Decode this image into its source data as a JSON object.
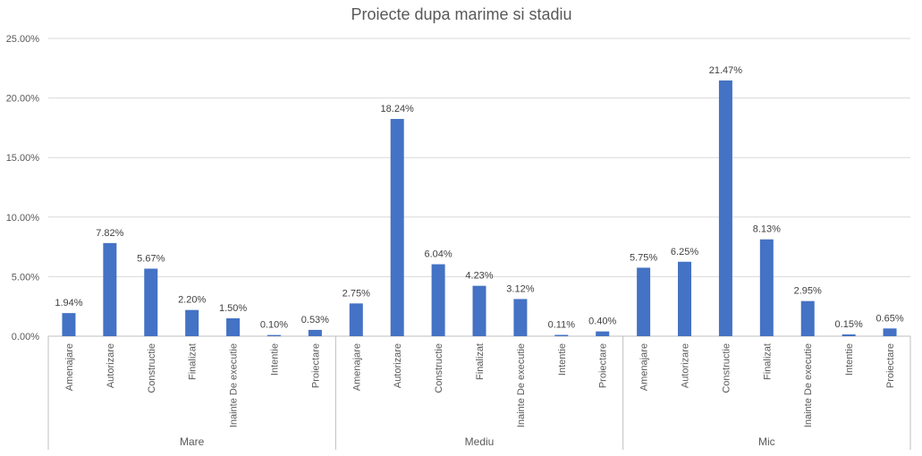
{
  "chart_data": {
    "type": "bar",
    "title": "Proiecte dupa marime si stadiu",
    "ylim": [
      0,
      25
    ],
    "y_unit": "%",
    "y_ticks": [
      "0.00%",
      "5.00%",
      "10.00%",
      "15.00%",
      "20.00%",
      "25.00%"
    ],
    "grid": true,
    "legend": "none",
    "color": "#4472c4",
    "groups": [
      {
        "name": "Mare",
        "categories": [
          "Amenajare",
          "Autorizare",
          "Constructie",
          "Finalizat",
          "Inainte De executie",
          "Intentie",
          "Proiectare"
        ],
        "values": [
          1.94,
          7.82,
          5.67,
          2.2,
          1.5,
          0.1,
          0.53
        ],
        "labels": [
          "1.94%",
          "7.82%",
          "5.67%",
          "2.20%",
          "1.50%",
          "0.10%",
          "0.53%"
        ]
      },
      {
        "name": "Mediu",
        "categories": [
          "Amenajare",
          "Autorizare",
          "Constructie",
          "Finalizat",
          "Inainte De executie",
          "Intentie",
          "Proiectare"
        ],
        "values": [
          2.75,
          18.24,
          6.04,
          4.23,
          3.12,
          0.11,
          0.4
        ],
        "labels": [
          "2.75%",
          "18.24%",
          "6.04%",
          "4.23%",
          "3.12%",
          "0.11%",
          "0.40%"
        ]
      },
      {
        "name": "Mic",
        "categories": [
          "Amenajare",
          "Autorizare",
          "Constructie",
          "Finalizat",
          "Inainte De executie",
          "Intentie",
          "Proiectare"
        ],
        "values": [
          5.75,
          6.25,
          21.47,
          8.13,
          2.95,
          0.15,
          0.65
        ],
        "labels": [
          "5.75%",
          "6.25%",
          "21.47%",
          "8.13%",
          "2.95%",
          "0.15%",
          "0.65%"
        ]
      }
    ]
  }
}
